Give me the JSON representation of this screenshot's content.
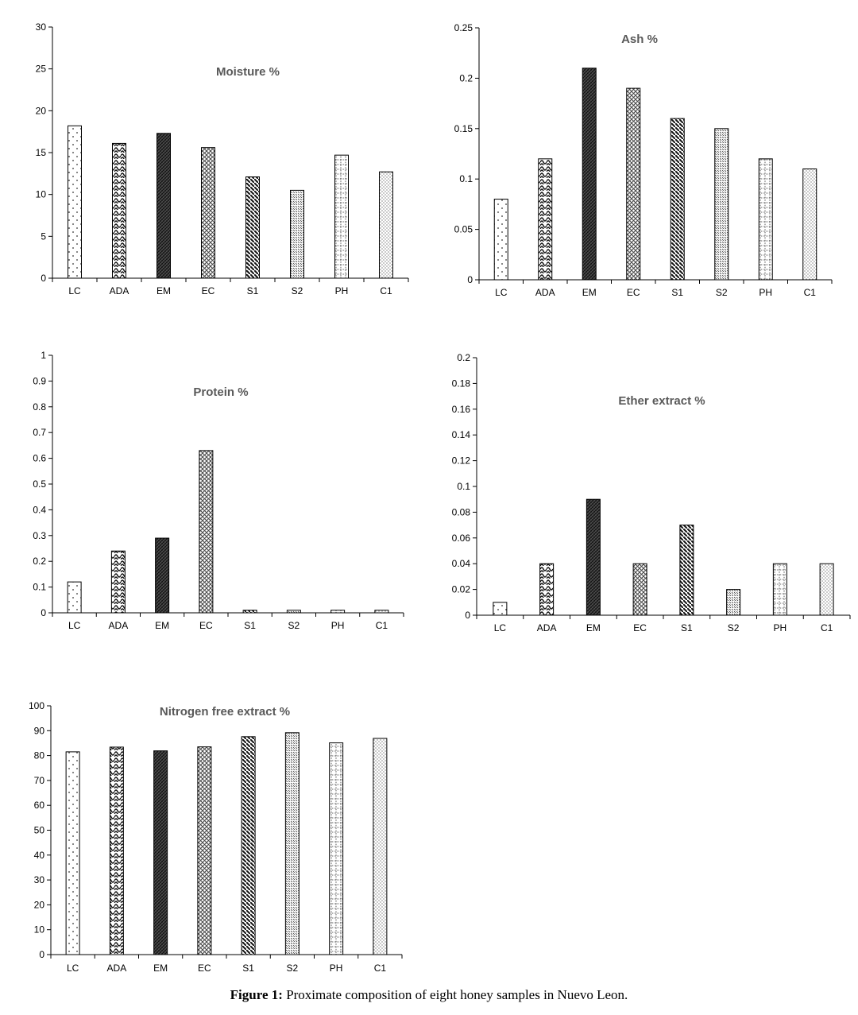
{
  "caption": {
    "label": "Figure 1:",
    "text": " Proximate composition of eight honey samples in Nuevo Leon."
  },
  "chart_data": [
    {
      "type": "bar",
      "title": "Moisture %",
      "categories": [
        "LC",
        "ADA",
        "EM",
        "EC",
        "S1",
        "S2",
        "PH",
        "C1"
      ],
      "values": [
        18.2,
        16.1,
        17.3,
        15.6,
        12.1,
        10.5,
        14.7,
        12.7
      ],
      "ylim": [
        0,
        30
      ],
      "yticks": [
        "0",
        "5",
        "10",
        "15",
        "20",
        "25",
        "30"
      ],
      "xlabel": "",
      "ylabel": ""
    },
    {
      "type": "bar",
      "title": "Ash %",
      "categories": [
        "LC",
        "ADA",
        "EM",
        "EC",
        "S1",
        "S2",
        "PH",
        "C1"
      ],
      "values": [
        0.08,
        0.12,
        0.21,
        0.19,
        0.16,
        0.15,
        0.12,
        0.11
      ],
      "ylim": [
        0,
        0.25
      ],
      "yticks": [
        "0",
        "0.05",
        "0.1",
        "0.15",
        "0.2",
        "0.25"
      ],
      "xlabel": "",
      "ylabel": ""
    },
    {
      "type": "bar",
      "title": "Protein %",
      "categories": [
        "LC",
        "ADA",
        "EM",
        "EC",
        "S1",
        "S2",
        "PH",
        "C1"
      ],
      "values": [
        0.12,
        0.24,
        0.29,
        0.63,
        0.01,
        0.01,
        0.01,
        0.01
      ],
      "ylim": [
        0,
        1
      ],
      "yticks": [
        "0",
        "0.1",
        "0.2",
        "0.3",
        "0.4",
        "0.5",
        "0.6",
        "0.7",
        "0.8",
        "0.9",
        "1"
      ],
      "xlabel": "",
      "ylabel": ""
    },
    {
      "type": "bar",
      "title": "Ether extract %",
      "categories": [
        "LC",
        "ADA",
        "EM",
        "EC",
        "S1",
        "S2",
        "PH",
        "C1"
      ],
      "values": [
        0.01,
        0.04,
        0.09,
        0.04,
        0.07,
        0.02,
        0.04,
        0.04
      ],
      "ylim": [
        0,
        0.2
      ],
      "yticks": [
        "0",
        "0.02",
        "0.04",
        "0.06",
        "0.08",
        "0.1",
        "0.12",
        "0.14",
        "0.16",
        "0.18",
        "0.2"
      ],
      "xlabel": "",
      "ylabel": ""
    },
    {
      "type": "bar",
      "title": "Nitrogen free extract %",
      "categories": [
        "LC",
        "ADA",
        "EM",
        "EC",
        "S1",
        "S2",
        "PH",
        "C1"
      ],
      "values": [
        81.5,
        83.4,
        81.9,
        83.5,
        87.6,
        89.2,
        85.1,
        86.9
      ],
      "ylim": [
        0,
        100
      ],
      "yticks": [
        "0",
        "10",
        "20",
        "30",
        "40",
        "50",
        "60",
        "70",
        "80",
        "90",
        "100"
      ],
      "xlabel": "",
      "ylabel": ""
    }
  ]
}
